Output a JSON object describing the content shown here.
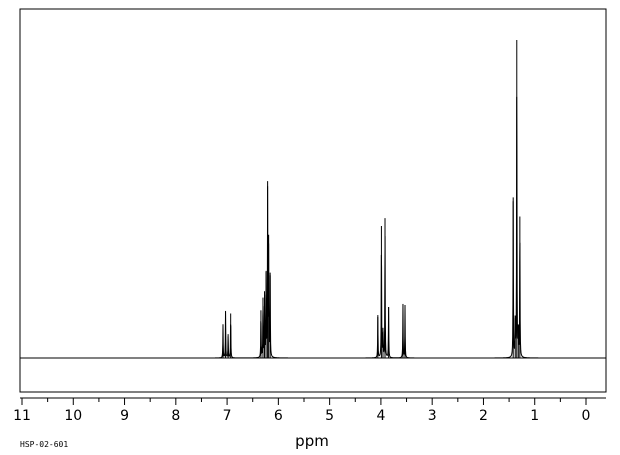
{
  "sample_id": "HSP-02-601",
  "chart_data": {
    "type": "line",
    "xlabel": "ppm",
    "x_axis_reversed": true,
    "xlim": [
      11,
      0
    ],
    "x_ticks_major": [
      11,
      10,
      9,
      8,
      7,
      6,
      5,
      4,
      3,
      2,
      1,
      0
    ],
    "x_ticks_minor_step": 0.5,
    "grid": false,
    "legend": "none",
    "ylim": [
      0,
      1.0
    ],
    "baseline": 0,
    "peaks": [
      {
        "ppm": 7.08,
        "height": 0.105
      },
      {
        "ppm": 7.03,
        "height": 0.148
      },
      {
        "ppm": 6.98,
        "height": 0.075
      },
      {
        "ppm": 6.93,
        "height": 0.14
      },
      {
        "ppm": 6.34,
        "height": 0.15
      },
      {
        "ppm": 6.3,
        "height": 0.19
      },
      {
        "ppm": 6.27,
        "height": 0.21
      },
      {
        "ppm": 6.24,
        "height": 0.27
      },
      {
        "ppm": 6.21,
        "height": 0.54
      },
      {
        "ppm": 6.19,
        "height": 0.36
      },
      {
        "ppm": 6.16,
        "height": 0.26
      },
      {
        "ppm": 4.06,
        "height": 0.135
      },
      {
        "ppm": 3.99,
        "height": 0.415
      },
      {
        "ppm": 3.96,
        "height": 0.095
      },
      {
        "ppm": 3.92,
        "height": 0.44
      },
      {
        "ppm": 3.85,
        "height": 0.16
      },
      {
        "ppm": 3.57,
        "height": 0.17
      },
      {
        "ppm": 3.53,
        "height": 0.165
      },
      {
        "ppm": 1.42,
        "height": 0.505
      },
      {
        "ppm": 1.38,
        "height": 0.125
      },
      {
        "ppm": 1.35,
        "height": 1.0
      },
      {
        "ppm": 1.32,
        "height": 0.105
      },
      {
        "ppm": 1.29,
        "height": 0.445
      }
    ]
  }
}
